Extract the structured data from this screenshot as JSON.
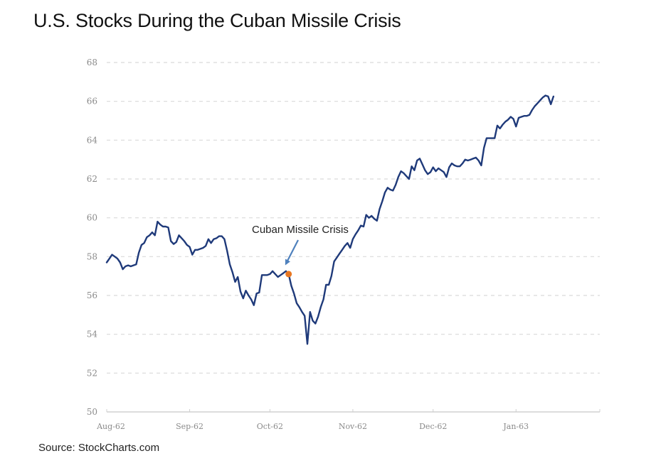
{
  "title": "U.S. Stocks During the Cuban Missile Crisis",
  "source": "Source: StockCharts.com",
  "colors": {
    "line": "#1f3a7a",
    "marker": "#e87722",
    "arrow": "#4f81bd",
    "grid": "#d9d9d9",
    "axis": "#d0d0d0",
    "tick_text": "#8a8a8a"
  },
  "chart_data": {
    "type": "line",
    "title": "U.S. Stocks During the Cuban Missile Crisis",
    "xlabel": "",
    "ylabel": "",
    "ylim": [
      50,
      68
    ],
    "yticks": [
      50,
      52,
      54,
      56,
      58,
      60,
      62,
      64,
      66,
      68
    ],
    "ytick_labels": [
      "50",
      "52",
      "54",
      "56",
      "58",
      "60",
      "62",
      "64",
      "66",
      "68"
    ],
    "x_unit": "days since 1962-08-01",
    "xlim": [
      0,
      183
    ],
    "xticks": [
      0,
      31,
      61,
      92,
      122,
      153
    ],
    "xtick_labels": [
      "Aug-62",
      "Sep-62",
      "Oct-62",
      "Nov-62",
      "Dec-62",
      "Jan-63"
    ],
    "grid": "horizontal dashed",
    "legend": "none",
    "series": [
      {
        "name": "U.S. Stocks",
        "points": [
          [
            0,
            57.7
          ],
          [
            1,
            57.9
          ],
          [
            2,
            58.1
          ],
          [
            3,
            58.0
          ],
          [
            4,
            57.9
          ],
          [
            5,
            57.7
          ],
          [
            6,
            57.35
          ],
          [
            7,
            57.5
          ],
          [
            8,
            57.55
          ],
          [
            9,
            57.5
          ],
          [
            10,
            57.55
          ],
          [
            11,
            57.6
          ],
          [
            12,
            58.2
          ],
          [
            13,
            58.6
          ],
          [
            14,
            58.7
          ],
          [
            15,
            59.0
          ],
          [
            16,
            59.1
          ],
          [
            17,
            59.25
          ],
          [
            18,
            59.1
          ],
          [
            19,
            59.8
          ],
          [
            20,
            59.65
          ],
          [
            21,
            59.55
          ],
          [
            22,
            59.55
          ],
          [
            23,
            59.5
          ],
          [
            24,
            58.8
          ],
          [
            25,
            58.65
          ],
          [
            26,
            58.75
          ],
          [
            27,
            59.1
          ],
          [
            28,
            58.95
          ],
          [
            29,
            58.8
          ],
          [
            30,
            58.6
          ],
          [
            31,
            58.5
          ],
          [
            32,
            58.1
          ],
          [
            33,
            58.35
          ],
          [
            34,
            58.35
          ],
          [
            35,
            58.4
          ],
          [
            36,
            58.45
          ],
          [
            37,
            58.55
          ],
          [
            38,
            58.9
          ],
          [
            39,
            58.7
          ],
          [
            40,
            58.9
          ],
          [
            41,
            58.95
          ],
          [
            42,
            59.05
          ],
          [
            43,
            59.05
          ],
          [
            44,
            58.9
          ],
          [
            45,
            58.3
          ],
          [
            46,
            57.6
          ],
          [
            47,
            57.2
          ],
          [
            48,
            56.7
          ],
          [
            49,
            56.95
          ],
          [
            50,
            56.2
          ],
          [
            51,
            55.85
          ],
          [
            52,
            56.25
          ],
          [
            53,
            56.0
          ],
          [
            54,
            55.8
          ],
          [
            55,
            55.5
          ],
          [
            56,
            56.1
          ],
          [
            57,
            56.15
          ],
          [
            58,
            57.05
          ],
          [
            59,
            57.05
          ],
          [
            60,
            57.05
          ],
          [
            61,
            57.1
          ],
          [
            62,
            57.25
          ],
          [
            63,
            57.1
          ],
          [
            64,
            56.95
          ],
          [
            65,
            57.05
          ],
          [
            66,
            57.15
          ],
          [
            67,
            57.25
          ],
          [
            68,
            57.1
          ],
          [
            69,
            56.5
          ],
          [
            70,
            56.1
          ],
          [
            71,
            55.6
          ],
          [
            72,
            55.4
          ],
          [
            73,
            55.15
          ],
          [
            74,
            54.95
          ],
          [
            75,
            53.5
          ],
          [
            76,
            55.15
          ],
          [
            77,
            54.7
          ],
          [
            78,
            54.55
          ],
          [
            79,
            54.9
          ],
          [
            80,
            55.4
          ],
          [
            81,
            55.8
          ],
          [
            82,
            56.55
          ],
          [
            83,
            56.55
          ],
          [
            84,
            57.0
          ],
          [
            85,
            57.75
          ],
          [
            86,
            57.95
          ],
          [
            87,
            58.15
          ],
          [
            88,
            58.35
          ],
          [
            89,
            58.55
          ],
          [
            90,
            58.7
          ],
          [
            91,
            58.45
          ],
          [
            92,
            58.9
          ],
          [
            93,
            59.15
          ],
          [
            94,
            59.35
          ],
          [
            95,
            59.6
          ],
          [
            96,
            59.55
          ],
          [
            97,
            60.15
          ],
          [
            98,
            60.0
          ],
          [
            99,
            60.1
          ],
          [
            100,
            59.95
          ],
          [
            101,
            59.85
          ],
          [
            102,
            60.45
          ],
          [
            103,
            60.85
          ],
          [
            104,
            61.3
          ],
          [
            105,
            61.55
          ],
          [
            106,
            61.45
          ],
          [
            107,
            61.4
          ],
          [
            108,
            61.7
          ],
          [
            109,
            62.1
          ],
          [
            110,
            62.4
          ],
          [
            111,
            62.3
          ],
          [
            112,
            62.15
          ],
          [
            113,
            62.0
          ],
          [
            114,
            62.65
          ],
          [
            115,
            62.45
          ],
          [
            116,
            62.95
          ],
          [
            117,
            63.05
          ],
          [
            118,
            62.75
          ],
          [
            119,
            62.45
          ],
          [
            120,
            62.25
          ],
          [
            121,
            62.35
          ],
          [
            122,
            62.6
          ],
          [
            123,
            62.4
          ],
          [
            124,
            62.55
          ],
          [
            125,
            62.45
          ],
          [
            126,
            62.35
          ],
          [
            127,
            62.1
          ],
          [
            128,
            62.6
          ],
          [
            129,
            62.8
          ],
          [
            130,
            62.7
          ],
          [
            131,
            62.65
          ],
          [
            132,
            62.65
          ],
          [
            133,
            62.8
          ],
          [
            134,
            63.0
          ],
          [
            135,
            62.95
          ],
          [
            136,
            63.0
          ],
          [
            137,
            63.05
          ],
          [
            138,
            63.1
          ],
          [
            139,
            62.95
          ],
          [
            140,
            62.7
          ],
          [
            141,
            63.6
          ],
          [
            142,
            64.1
          ],
          [
            143,
            64.1
          ],
          [
            144,
            64.1
          ],
          [
            145,
            64.1
          ],
          [
            146,
            64.75
          ],
          [
            147,
            64.6
          ],
          [
            148,
            64.8
          ],
          [
            149,
            64.95
          ],
          [
            150,
            65.05
          ],
          [
            151,
            65.2
          ],
          [
            152,
            65.1
          ],
          [
            153,
            64.7
          ],
          [
            154,
            65.15
          ],
          [
            155,
            65.2
          ],
          [
            156,
            65.25
          ],
          [
            157,
            65.25
          ],
          [
            158,
            65.3
          ],
          [
            159,
            65.55
          ],
          [
            160,
            65.75
          ],
          [
            161,
            65.9
          ],
          [
            162,
            66.05
          ],
          [
            163,
            66.2
          ],
          [
            164,
            66.3
          ],
          [
            165,
            66.25
          ],
          [
            166,
            65.85
          ],
          [
            167,
            66.25
          ]
        ]
      }
    ],
    "annotations": [
      {
        "text": "Cuban Missile Crisis",
        "x": 68,
        "y": 57.1,
        "marker": "orange dot",
        "arrow": true
      }
    ]
  }
}
